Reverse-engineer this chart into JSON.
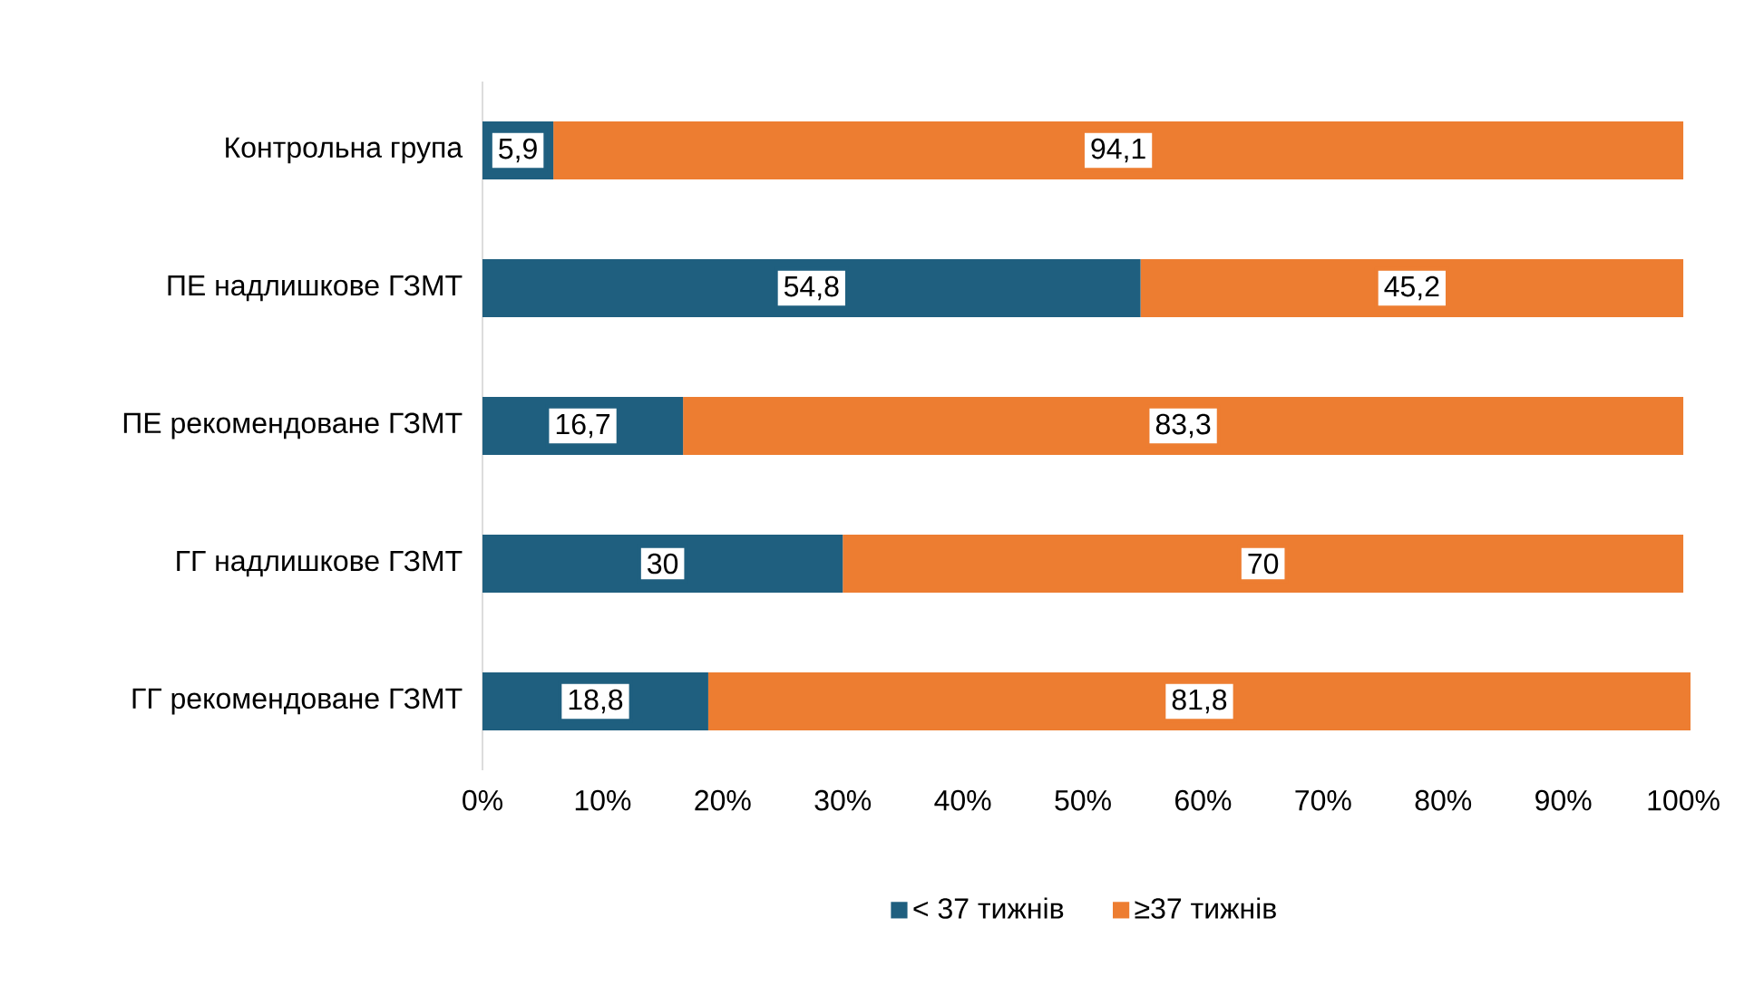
{
  "chart_data": {
    "type": "bar",
    "orientation": "horizontal",
    "stacked": true,
    "categories": [
      "Контрольна група",
      "ПЕ надлишкове ГЗМТ",
      "ПЕ рекомендоване ГЗМТ",
      "ГГ надлишкове ГЗМТ",
      "ГГ рекомендоване ГЗМТ"
    ],
    "series": [
      {
        "name": "< 37 тижнів",
        "color": "#1f5f7f",
        "values": [
          5.9,
          54.8,
          16.7,
          30,
          18.8
        ],
        "value_labels": [
          "5,9",
          "54,8",
          "16,7",
          "30",
          "18,8"
        ]
      },
      {
        "name": "≥37 тижнів",
        "color": "#ed7d31",
        "values": [
          94.1,
          45.2,
          83.3,
          70,
          81.8
        ],
        "value_labels": [
          "94,1",
          "45,2",
          "83,3",
          "70",
          "81,8"
        ]
      }
    ],
    "xlim": [
      0,
      100.6
    ],
    "xticks": [
      {
        "value": 0,
        "label": "0%"
      },
      {
        "value": 10,
        "label": "10%"
      },
      {
        "value": 20,
        "label": "20%"
      },
      {
        "value": 30,
        "label": "30%"
      },
      {
        "value": 40,
        "label": "40%"
      },
      {
        "value": 50,
        "label": "50%"
      },
      {
        "value": 60,
        "label": "60%"
      },
      {
        "value": 70,
        "label": "70%"
      },
      {
        "value": 80,
        "label": "80%"
      },
      {
        "value": 90,
        "label": "90%"
      },
      {
        "value": 100,
        "label": "100%"
      }
    ],
    "grid": false,
    "legend": "bottom"
  }
}
